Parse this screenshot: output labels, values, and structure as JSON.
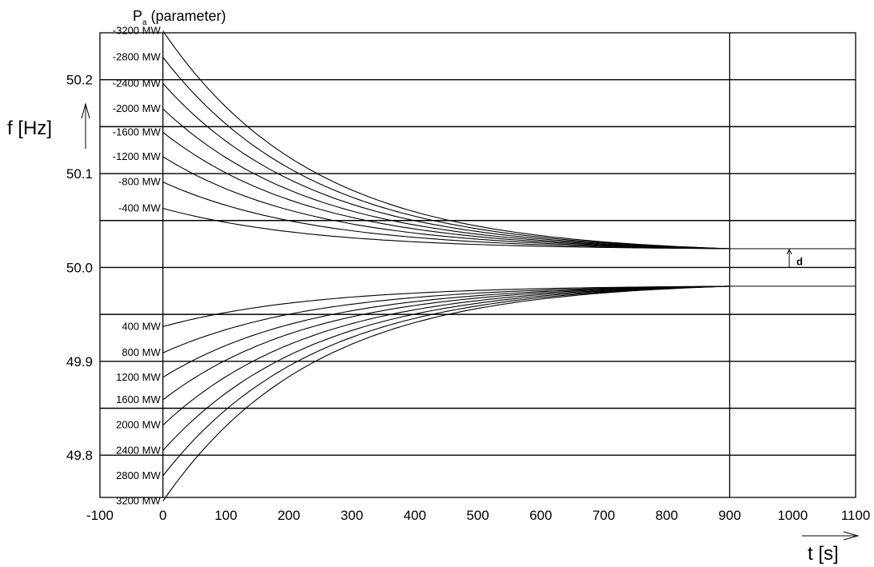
{
  "chart_data": {
    "type": "line",
    "parameter_label_main": "P",
    "parameter_label_sub": "a",
    "parameter_label_rest": " (parameter)",
    "ylabel": "f [Hz]",
    "xlabel": "t [s]",
    "xlim": [
      -100,
      1100
    ],
    "ylim": [
      49.755,
      50.25
    ],
    "x_ticks": [
      -100,
      0,
      100,
      200,
      300,
      400,
      500,
      600,
      700,
      800,
      900,
      1000,
      1100
    ],
    "y_tick_labels": [
      {
        "value": 50.2,
        "label": "50.2"
      },
      {
        "value": 50.1,
        "label": "50.1"
      },
      {
        "value": 50.0,
        "label": "50.0"
      },
      {
        "value": 49.9,
        "label": "49.9"
      },
      {
        "value": 49.8,
        "label": "49.8"
      }
    ],
    "grid_y": [
      50.2,
      50.15,
      50.1,
      50.05,
      50.0,
      49.95,
      49.9,
      49.85,
      49.8
    ],
    "vertical_lines_x": [
      0,
      900
    ],
    "end_time": 900,
    "upper_settled_f": 50.02,
    "lower_settled_f": 49.98,
    "deadband_label": "d",
    "series": [
      {
        "name": "-3200 MW",
        "f0": 50.252
      },
      {
        "name": "-2800 MW",
        "f0": 50.224
      },
      {
        "name": "-2400 MW",
        "f0": 50.196
      },
      {
        "name": "-2000 MW",
        "f0": 50.169
      },
      {
        "name": "-1600 MW",
        "f0": 50.144
      },
      {
        "name": "-1200 MW",
        "f0": 50.118
      },
      {
        "name": "-800 MW",
        "f0": 50.091
      },
      {
        "name": "-400 MW",
        "f0": 50.063
      },
      {
        "name": "400 MW",
        "f0": 49.937
      },
      {
        "name": "800 MW",
        "f0": 49.909
      },
      {
        "name": "1200 MW",
        "f0": 49.883
      },
      {
        "name": "1600 MW",
        "f0": 49.859
      },
      {
        "name": "2000 MW",
        "f0": 49.832
      },
      {
        "name": "2400 MW",
        "f0": 49.805
      },
      {
        "name": "2800 MW",
        "f0": 49.778
      },
      {
        "name": "3200 MW",
        "f0": 49.751
      }
    ]
  }
}
